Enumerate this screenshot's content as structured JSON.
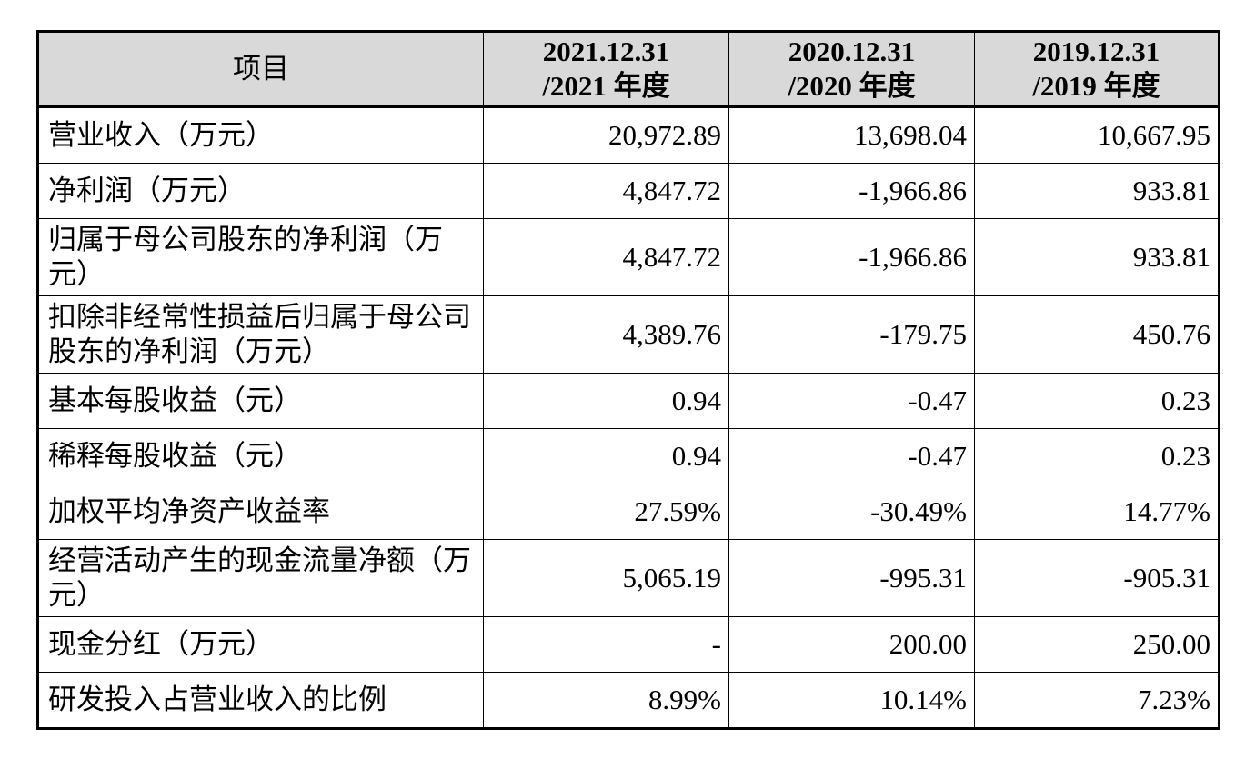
{
  "header": {
    "item": "项目",
    "col1_line1": "2021.12.31",
    "col1_line2": "/2021 年度",
    "col2_line1": "2020.12.31",
    "col2_line2": "/2020 年度",
    "col3_line1": "2019.12.31",
    "col3_line2": "/2019 年度"
  },
  "rows": [
    {
      "label": "营业收入（万元）",
      "v2021": "20,972.89",
      "v2020": "13,698.04",
      "v2019": "10,667.95"
    },
    {
      "label": "净利润（万元）",
      "v2021": "4,847.72",
      "v2020": "-1,966.86",
      "v2019": "933.81"
    },
    {
      "label": "归属于母公司股东的净利润（万元）",
      "v2021": "4,847.72",
      "v2020": "-1,966.86",
      "v2019": "933.81"
    },
    {
      "label": "扣除非经常性损益后归属于母公司股东的净利润（万元）",
      "v2021": "4,389.76",
      "v2020": "-179.75",
      "v2019": "450.76"
    },
    {
      "label": "基本每股收益（元）",
      "v2021": "0.94",
      "v2020": "-0.47",
      "v2019": "0.23"
    },
    {
      "label": "稀释每股收益（元）",
      "v2021": "0.94",
      "v2020": "-0.47",
      "v2019": "0.23"
    },
    {
      "label": "加权平均净资产收益率",
      "v2021": "27.59%",
      "v2020": "-30.49%",
      "v2019": "14.77%"
    },
    {
      "label": "经营活动产生的现金流量净额（万元）",
      "v2021": "5,065.19",
      "v2020": "-995.31",
      "v2019": "-905.31"
    },
    {
      "label": "现金分红（万元）",
      "v2021": "-",
      "v2020": "200.00",
      "v2019": "250.00"
    },
    {
      "label": "研发投入占营业收入的比例",
      "v2021": "8.99%",
      "v2020": "10.14%",
      "v2019": "7.23%"
    }
  ]
}
